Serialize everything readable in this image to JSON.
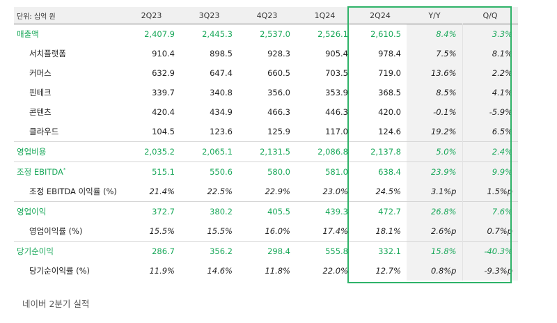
{
  "table": {
    "header": [
      "단위: 십억 원",
      "2Q23",
      "3Q23",
      "4Q23",
      "1Q24",
      "2Q24",
      "Y/Y",
      "Q/Q"
    ],
    "rows": [
      {
        "label": "매출액",
        "type": "main",
        "values": [
          "2,407.9",
          "2,445.3",
          "2,537.0",
          "2,526.1",
          "2,610.5",
          "8.4%",
          "3.3%"
        ]
      },
      {
        "label": "서치플랫폼",
        "type": "sub",
        "values": [
          "910.4",
          "898.5",
          "928.3",
          "905.4",
          "978.4",
          "7.5%",
          "8.1%"
        ]
      },
      {
        "label": "커머스",
        "type": "sub",
        "values": [
          "632.9",
          "647.4",
          "660.5",
          "703.5",
          "719.0",
          "13.6%",
          "2.2%"
        ]
      },
      {
        "label": "핀테크",
        "type": "sub",
        "values": [
          "339.7",
          "340.8",
          "356.0",
          "353.9",
          "368.5",
          "8.5%",
          "4.1%"
        ]
      },
      {
        "label": "콘텐츠",
        "type": "sub",
        "values": [
          "420.4",
          "434.9",
          "466.3",
          "446.3",
          "420.0",
          "-0.1%",
          "-5.9%"
        ]
      },
      {
        "label": "클라우드",
        "type": "sub",
        "values": [
          "104.5",
          "123.6",
          "125.9",
          "117.0",
          "124.6",
          "19.2%",
          "6.5%"
        ]
      },
      {
        "label": "영업비용",
        "type": "main",
        "values": [
          "2,035.2",
          "2,065.1",
          "2,131.5",
          "2,086.8",
          "2,137.8",
          "5.0%",
          "2.4%"
        ]
      },
      {
        "label": "조정 EBITDA",
        "sup": "*",
        "type": "main",
        "values": [
          "515.1",
          "550.6",
          "580.0",
          "581.0",
          "638.4",
          "23.9%",
          "9.9%"
        ]
      },
      {
        "label": "조정 EBITDA 이익률 (%)",
        "type": "ratio",
        "values": [
          "21.4%",
          "22.5%",
          "22.9%",
          "23.0%",
          "24.5%",
          "3.1%p",
          "1.5%p"
        ]
      },
      {
        "label": "영업이익",
        "type": "main",
        "values": [
          "372.7",
          "380.2",
          "405.5",
          "439.3",
          "472.7",
          "26.8%",
          "7.6%"
        ]
      },
      {
        "label": "영업이익률 (%)",
        "type": "ratio",
        "values": [
          "15.5%",
          "15.5%",
          "16.0%",
          "17.4%",
          "18.1%",
          "2.6%p",
          "0.7%p"
        ]
      },
      {
        "label": "당기순이익",
        "type": "main",
        "values": [
          "286.7",
          "356.2",
          "298.4",
          "555.8",
          "332.1",
          "15.8%",
          "-40.3%"
        ]
      },
      {
        "label": "당기순이익률 (%)",
        "type": "ratio",
        "values": [
          "11.9%",
          "14.6%",
          "11.8%",
          "22.0%",
          "12.7%",
          "0.8%p",
          "-9.3%p"
        ]
      }
    ]
  },
  "caption": "네이버 2분기 실적",
  "colors": {
    "accent_green": "#1aa85a",
    "highlight_border": "#2fb369",
    "header_bg": "#f0f0f0",
    "shaded_col": "#f2f2f2"
  }
}
